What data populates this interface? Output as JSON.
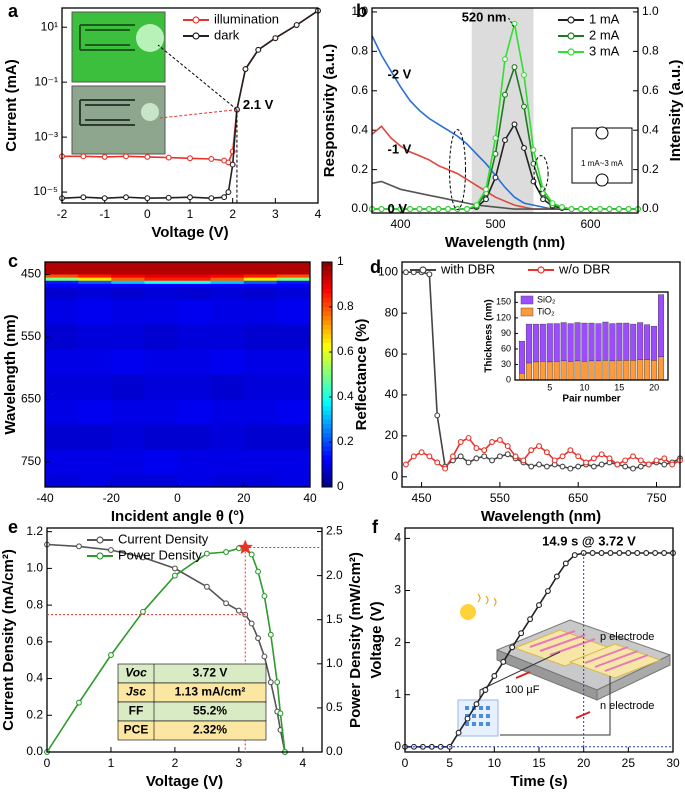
{
  "chart_data": [
    {
      "panel": "a",
      "type": "line",
      "xlabel": "Voltage (V)",
      "ylabel": "Current (mA)",
      "log_y": true,
      "x": [
        -2,
        -1.5,
        -1,
        -0.5,
        0,
        0.5,
        1,
        1.5,
        1.8,
        1.9,
        2.0,
        2.1,
        2.3,
        2.6,
        3,
        3.5,
        4
      ],
      "xlim": [
        -2,
        4
      ],
      "ylim": [
        4e-06,
        50
      ],
      "xticks": [
        -2,
        -1,
        0,
        1,
        2,
        3,
        4
      ],
      "yticks": [
        {
          "value": 10,
          "label": "10¹"
        },
        {
          "value": 0.1,
          "label": "10⁻¹"
        },
        {
          "value": 0.001,
          "label": "10⁻³"
        },
        {
          "value": 1e-05,
          "label": "10⁻⁵"
        }
      ],
      "legend": "upper right",
      "series": [
        {
          "name": "illumination",
          "color": "#e8322a",
          "marker": "circle",
          "values": [
            0.0002,
            0.0002,
            0.00019,
            0.0002,
            0.00019,
            0.00018,
            0.00017,
            0.00016,
            0.00014,
            0.00012,
            0.0003,
            0.01,
            0.3,
            1.5,
            4,
            12,
            40
          ]
        },
        {
          "name": "dark",
          "color": "#222222",
          "marker": "circle",
          "values": [
            6e-06,
            6.5e-06,
            6e-06,
            6.5e-06,
            6e-06,
            6.2e-06,
            6.5e-06,
            6e-06,
            6.5e-06,
            1e-05,
            0.0001,
            0.01,
            0.3,
            1.5,
            4,
            12,
            40
          ]
        }
      ],
      "annotations": [
        "2.1 V"
      ]
    },
    {
      "panel": "b",
      "type": "line",
      "xlabel": "Wavelength (nm)",
      "ylabel": "Responsivity (a.u.)",
      "y2label": "Intensity (a.u.)",
      "x": [
        370,
        380,
        390,
        400,
        410,
        420,
        430,
        440,
        450,
        460,
        470,
        480,
        490,
        500,
        510,
        520,
        530,
        540,
        550,
        560,
        570,
        580,
        590,
        600,
        610,
        620,
        630,
        640,
        650
      ],
      "xlim": [
        370,
        650
      ],
      "ylim": [
        -0.02,
        1.02
      ],
      "y2lim": [
        -0.02,
        1.02
      ],
      "xticks": [
        400,
        500,
        600
      ],
      "yticks": [
        {
          "value": 0,
          "label": "0.0"
        },
        {
          "value": 0.2,
          "label": "0.2"
        },
        {
          "value": 0.4,
          "label": "0.4"
        },
        {
          "value": 0.6,
          "label": "0.6"
        },
        {
          "value": 0.8,
          "label": "0.8"
        },
        {
          "value": 1,
          "label": "1.0"
        }
      ],
      "y2ticks": [
        {
          "value": 0,
          "label": "0.0"
        },
        {
          "value": 0.2,
          "label": "0.2"
        },
        {
          "value": 0.4,
          "label": "0.4"
        },
        {
          "value": 0.6,
          "label": "0.6"
        },
        {
          "value": 0.8,
          "label": "0.8"
        },
        {
          "value": 1,
          "label": "1.0"
        }
      ],
      "shade": [
        475,
        540
      ],
      "legend": "upper right",
      "series": [
        {
          "name": "-2 V",
          "color": "#2a6fd6",
          "values": [
            0.88,
            0.78,
            0.7,
            0.62,
            0.55,
            0.5,
            0.46,
            0.43,
            0.4,
            0.37,
            0.33,
            0.28,
            0.23,
            0.17,
            0.11,
            0.06,
            0.03,
            0.02,
            0.01,
            0,
            0,
            0,
            0,
            0,
            0,
            0,
            0,
            0,
            0
          ]
        },
        {
          "name": "-1 V",
          "color": "#e0443c",
          "values": [
            0.38,
            0.42,
            0.36,
            0.32,
            0.29,
            0.27,
            0.25,
            0.22,
            0.2,
            0.18,
            0.15,
            0.12,
            0.09,
            0.06,
            0.04,
            0.02,
            0.01,
            0,
            0,
            0,
            0,
            0,
            0,
            0,
            0,
            0,
            0,
            0,
            0
          ]
        },
        {
          "name": "0 V",
          "color": "#555555",
          "values": [
            0.13,
            0.14,
            0.12,
            0.1,
            0.09,
            0.08,
            0.07,
            0.06,
            0.05,
            0.04,
            0.03,
            0.02,
            0.015,
            0.01,
            0.005,
            0,
            0,
            0,
            0,
            0,
            0,
            0,
            0,
            0,
            0,
            0,
            0,
            0,
            0
          ]
        },
        {
          "name": "1 mA",
          "color": "#222222",
          "axis": "y2",
          "marker": "circle",
          "values": [
            0,
            0,
            0,
            0,
            0,
            0,
            0,
            0,
            0,
            0,
            0,
            0.01,
            0.05,
            0.16,
            0.35,
            0.43,
            0.31,
            0.14,
            0.05,
            0.015,
            0.005,
            0,
            0,
            0,
            0,
            0,
            0,
            0,
            0
          ]
        },
        {
          "name": "2 mA",
          "color": "#1f7a1f",
          "axis": "y2",
          "marker": "circle",
          "values": [
            0,
            0,
            0,
            0,
            0,
            0,
            0,
            0,
            0,
            0,
            0,
            0.015,
            0.08,
            0.28,
            0.58,
            0.72,
            0.52,
            0.23,
            0.08,
            0.02,
            0.01,
            0,
            0,
            0,
            0,
            0,
            0,
            0,
            0
          ]
        },
        {
          "name": "3 mA",
          "color": "#33dd33",
          "axis": "y2",
          "marker": "circle",
          "values": [
            0,
            0,
            0,
            0,
            0,
            0,
            0,
            0,
            0,
            0,
            0,
            0.02,
            0.1,
            0.36,
            0.76,
            0.94,
            0.68,
            0.3,
            0.1,
            0.03,
            0.01,
            0,
            0,
            0,
            0,
            0,
            0,
            0,
            0
          ]
        }
      ],
      "annotations": [
        "520 nm",
        "1 mA~3 mA"
      ]
    },
    {
      "panel": "c",
      "type": "heatmap",
      "xlabel": "Incident angle θ (°)",
      "ylabel": "Wavelength (nm)",
      "x_edges": [
        -40,
        -30,
        -20,
        -10,
        0,
        10,
        20,
        30,
        40
      ],
      "y_edges": [
        430,
        450,
        455,
        460,
        465,
        470,
        490,
        530,
        570,
        610,
        650,
        690,
        730,
        770,
        790
      ],
      "z": [
        [
          0.95,
          0.95,
          0.95,
          0.95,
          0.95,
          0.95,
          0.95,
          0.95
        ],
        [
          0.8,
          0.85,
          0.88,
          0.9,
          0.9,
          0.88,
          0.85,
          0.8
        ],
        [
          0.5,
          0.65,
          0.78,
          0.85,
          0.85,
          0.78,
          0.65,
          0.5
        ],
        [
          0.15,
          0.22,
          0.32,
          0.4,
          0.4,
          0.32,
          0.22,
          0.15
        ],
        [
          0.12,
          0.12,
          0.12,
          0.12,
          0.12,
          0.12,
          0.12,
          0.12
        ],
        [
          0.08,
          0.09,
          0.08,
          0.09,
          0.08,
          0.09,
          0.08,
          0.09
        ],
        [
          0.1,
          0.11,
          0.1,
          0.1,
          0.11,
          0.1,
          0.1,
          0.11
        ],
        [
          0.08,
          0.09,
          0.09,
          0.08,
          0.09,
          0.09,
          0.08,
          0.08
        ],
        [
          0.1,
          0.1,
          0.11,
          0.1,
          0.1,
          0.11,
          0.1,
          0.1
        ],
        [
          0.09,
          0.09,
          0.08,
          0.09,
          0.09,
          0.08,
          0.09,
          0.09
        ],
        [
          0.1,
          0.11,
          0.1,
          0.1,
          0.11,
          0.1,
          0.1,
          0.11
        ],
        [
          0.08,
          0.08,
          0.09,
          0.08,
          0.08,
          0.09,
          0.08,
          0.08
        ],
        [
          0.1,
          0.1,
          0.1,
          0.11,
          0.1,
          0.1,
          0.1,
          0.1
        ],
        [
          0.09,
          0.1,
          0.09,
          0.09,
          0.1,
          0.09,
          0.09,
          0.1
        ]
      ],
      "xlim": [
        -40,
        40
      ],
      "ylim": [
        790,
        430
      ],
      "xticks": [
        -40,
        -20,
        0,
        20,
        40
      ],
      "yticks": [
        450,
        550,
        650,
        750
      ],
      "clim": [
        0,
        1
      ],
      "cticks": [
        0,
        0.2,
        0.4,
        0.6,
        0.8,
        1
      ]
    },
    {
      "panel": "d",
      "type": "line",
      "xlabel": "Wavelength (nm)",
      "ylabel": "Reflectance (%)",
      "x": [
        430,
        440,
        450,
        460,
        470,
        480,
        490,
        500,
        510,
        520,
        530,
        540,
        550,
        560,
        570,
        580,
        590,
        600,
        610,
        620,
        630,
        640,
        650,
        660,
        670,
        680,
        690,
        700,
        710,
        720,
        730,
        740,
        750,
        760,
        770,
        780
      ],
      "xlim": [
        425,
        780
      ],
      "ylim": [
        -5,
        105
      ],
      "xticks": [
        450,
        550,
        650,
        750
      ],
      "yticks": [
        0,
        20,
        40,
        60,
        80,
        100
      ],
      "legend": "upper center",
      "series": [
        {
          "name": "with DBR",
          "color": "#444444",
          "marker": "circle",
          "values": [
            100,
            100,
            100,
            99,
            30,
            5,
            8,
            10,
            7,
            9,
            10,
            8,
            10,
            11,
            9,
            7,
            5,
            6,
            5,
            6,
            5,
            4,
            5,
            6,
            5,
            6,
            7,
            6,
            5,
            4,
            5,
            6,
            7,
            6,
            7,
            9
          ]
        },
        {
          "name": "w/o DBR",
          "color": "#e8322a",
          "marker": "circle",
          "values": [
            6,
            10,
            12,
            10,
            7,
            4,
            10,
            17,
            19,
            14,
            13,
            17,
            18,
            15,
            10,
            8,
            13,
            15,
            12,
            8,
            10,
            13,
            10,
            7,
            9,
            11,
            9,
            6,
            8,
            10,
            8,
            6,
            8,
            9,
            6,
            8
          ]
        }
      ]
    },
    {
      "type": "bar",
      "stacked": true,
      "xlabel": "Pair number",
      "ylabel": "Thickness (nm)",
      "x": [
        1,
        2,
        3,
        4,
        5,
        6,
        7,
        8,
        9,
        10,
        11,
        12,
        13,
        14,
        15,
        16,
        17,
        18,
        19,
        20,
        21
      ],
      "xlim": [
        0,
        22
      ],
      "ylim": [
        0,
        170
      ],
      "xticks": [
        5,
        10,
        15,
        20
      ],
      "yticks": [
        0,
        30,
        60,
        90,
        120,
        150
      ],
      "legend": "upper left",
      "series": [
        {
          "name": "TiO₂",
          "color": "#ff9a3c",
          "values": [
            13,
            33,
            35,
            36,
            35,
            36,
            37,
            36,
            37,
            36,
            37,
            37,
            38,
            37,
            38,
            38,
            38,
            39,
            39,
            38,
            45
          ]
        },
        {
          "name": "SiO₂",
          "color": "#9b4dff",
          "values": [
            62,
            75,
            73,
            72,
            74,
            73,
            74,
            73,
            74,
            74,
            73,
            72,
            74,
            72,
            72,
            72,
            70,
            72,
            68,
            66,
            120
          ]
        }
      ]
    },
    {
      "panel": "e",
      "type": "line",
      "xlabel": "Voltage (V)",
      "ylabel": "Current Density (mA/cm²)",
      "y2label": "Power Density (mW/cm²)",
      "x": [
        0,
        0.5,
        1,
        1.5,
        2,
        2.5,
        2.8,
        3.0,
        3.1,
        3.2,
        3.3,
        3.4,
        3.5,
        3.6,
        3.65,
        3.72
      ],
      "xlim": [
        0,
        4.3
      ],
      "ylim": [
        0,
        1.22
      ],
      "y2lim": [
        0,
        2.54
      ],
      "xticks": [
        0,
        1,
        2,
        3,
        4
      ],
      "yticks": [
        {
          "value": 0,
          "label": "0.0"
        },
        {
          "value": 0.2,
          "label": "0.2"
        },
        {
          "value": 0.4,
          "label": "0.4"
        },
        {
          "value": 0.6,
          "label": "0.6"
        },
        {
          "value": 0.8,
          "label": "0.8"
        },
        {
          "value": 1,
          "label": "1.0"
        },
        {
          "value": 1.2,
          "label": "1.2"
        }
      ],
      "y2ticks": [
        {
          "value": 0,
          "label": "0.0"
        },
        {
          "value": 0.5,
          "label": "0.5"
        },
        {
          "value": 1,
          "label": "1.0"
        },
        {
          "value": 1.5,
          "label": "1.5"
        },
        {
          "value": 2,
          "label": "2.0"
        },
        {
          "value": 2.5,
          "label": "2.5"
        }
      ],
      "legend": "upper left",
      "series": [
        {
          "name": "Current Density",
          "color": "#555555",
          "marker": "circle",
          "values": [
            1.13,
            1.12,
            1.1,
            1.06,
            1.0,
            0.9,
            0.81,
            0.77,
            0.748,
            0.7,
            0.62,
            0.52,
            0.38,
            0.22,
            0.12,
            0
          ]
        },
        {
          "name": "Power Density",
          "color": "#2e9a2e",
          "axis": "y2",
          "marker": "circle",
          "values": [
            0,
            0.56,
            1.1,
            1.59,
            2.0,
            2.25,
            2.268,
            2.31,
            2.319,
            2.24,
            2.046,
            1.768,
            1.33,
            0.792,
            0.438,
            0
          ]
        }
      ],
      "table": [
        [
          "Voc",
          "3.72 V"
        ],
        [
          "Jsc",
          "1.13 mA/cm²"
        ],
        [
          "FF",
          "55.2%"
        ],
        [
          "PCE",
          "2.32%"
        ]
      ]
    },
    {
      "panel": "f",
      "type": "line",
      "xlabel": "Time (s)",
      "ylabel": "Voltage (V)",
      "x": [
        0,
        1,
        2,
        3,
        4,
        5,
        6,
        7,
        8,
        9,
        10,
        11,
        12,
        13,
        14,
        15,
        16,
        17,
        18,
        19,
        20,
        21,
        22,
        23,
        24,
        25,
        26,
        27,
        28,
        29,
        30
      ],
      "xlim": [
        0,
        30
      ],
      "ylim": [
        -0.1,
        4.2
      ],
      "xticks": [
        0,
        5,
        10,
        15,
        20,
        25,
        30
      ],
      "yticks": [
        0,
        1,
        2,
        3,
        4
      ],
      "series": [
        {
          "name": "Voltage",
          "color": "#222222",
          "marker": "circle",
          "values": [
            0,
            0,
            0,
            0,
            0,
            0,
            0.27,
            0.54,
            0.82,
            1.09,
            1.36,
            1.63,
            1.91,
            2.18,
            2.45,
            2.72,
            2.99,
            3.27,
            3.52,
            3.68,
            3.72,
            3.72,
            3.72,
            3.72,
            3.72,
            3.72,
            3.72,
            3.72,
            3.72,
            3.72,
            3.72
          ]
        }
      ],
      "annotations": [
        "14.9 s @ 3.72 V",
        "p electrode",
        "n electrode",
        "100 µF"
      ]
    }
  ]
}
